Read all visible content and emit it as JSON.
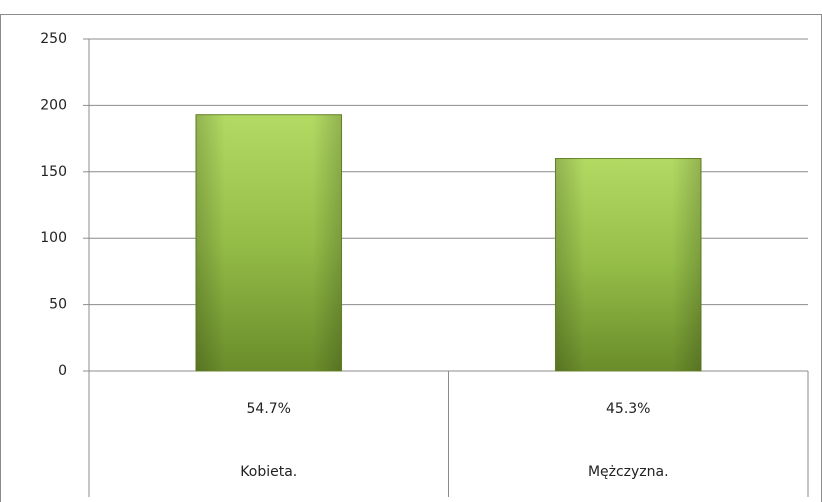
{
  "chart_data": {
    "type": "bar",
    "categories": [
      "Kobieta.",
      "Mężczyzna."
    ],
    "percentages": [
      "54.7%",
      "45.3%"
    ],
    "values": [
      193,
      160
    ],
    "color": "#8cb444",
    "ylim": [
      0,
      250
    ],
    "yticks": [
      0,
      50,
      100,
      150,
      200,
      250
    ],
    "grid": true
  }
}
